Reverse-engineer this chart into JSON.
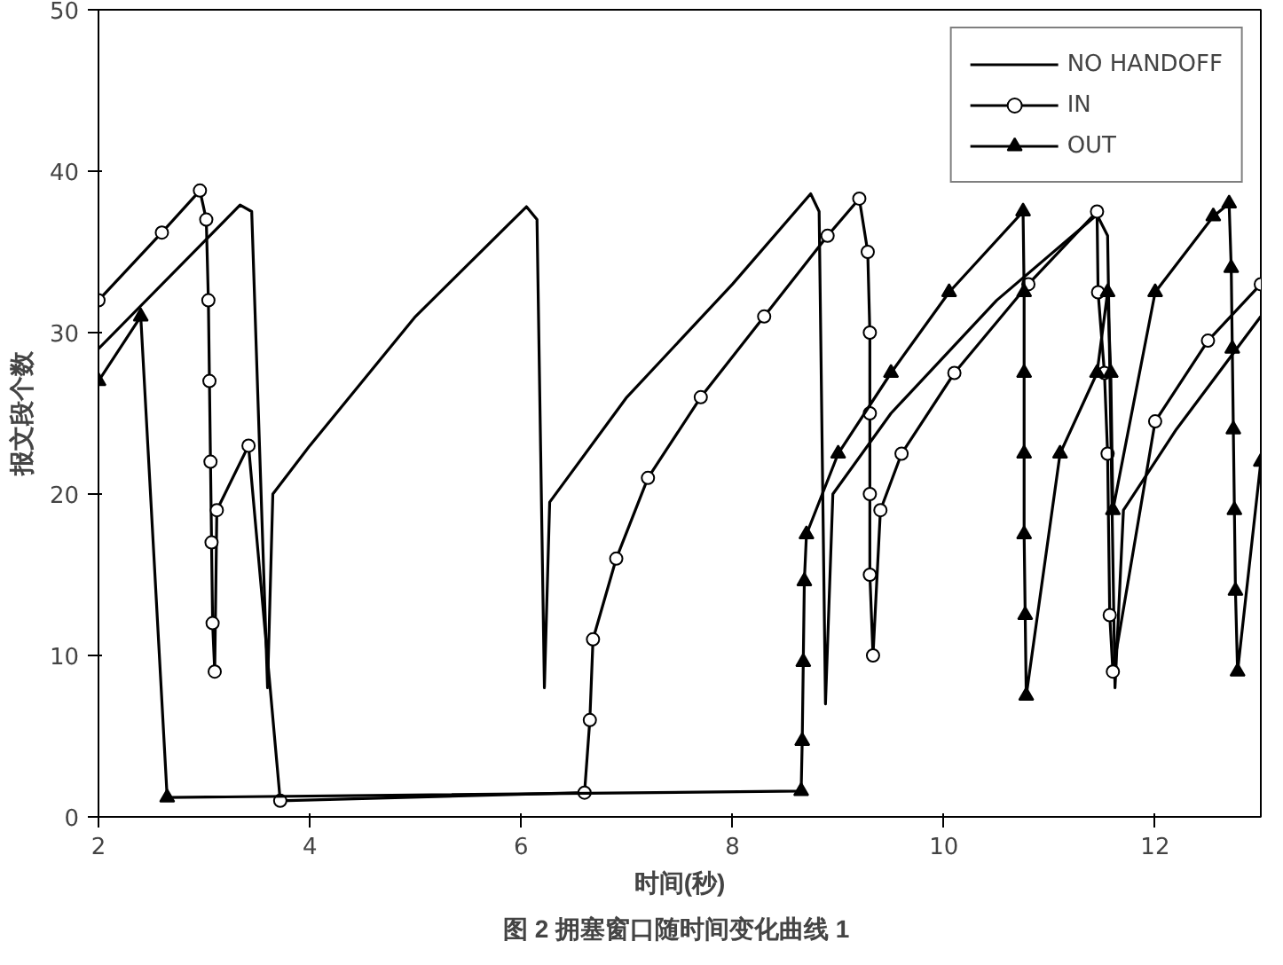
{
  "chart_data": {
    "type": "line",
    "title": "图 2  拥塞窗口随时间变化曲线 1",
    "xlabel": "时间(秒)",
    "ylabel": "报文段个数",
    "xlim": [
      2,
      13
    ],
    "ylim": [
      0,
      50
    ],
    "xticks": [
      2,
      4,
      6,
      8,
      10,
      12
    ],
    "yticks": [
      0,
      10,
      20,
      30,
      40,
      50
    ],
    "grid": false,
    "legend": "top right",
    "line_style": "solid",
    "series": [
      {
        "name": "NO HANDOFF",
        "color": "#000000",
        "marker": "none",
        "x": [
          2,
          3.34,
          3.45,
          3.6,
          3.65,
          4,
          5,
          6.05,
          6.15,
          6.22,
          6.27,
          7,
          8,
          8.74,
          8.82,
          8.88,
          8.95,
          9.5,
          10.5,
          11.45,
          11.55,
          11.62,
          11.7,
          12.2,
          13
        ],
        "values": [
          29,
          37.9,
          37.5,
          8,
          20,
          23,
          31,
          37.8,
          37,
          8,
          19.5,
          26,
          33,
          38.6,
          37.5,
          7,
          20,
          25,
          32,
          37.3,
          36,
          8,
          19,
          24,
          31
        ]
      },
      {
        "name": "IN",
        "color": "#000000",
        "marker": "circle",
        "x": [
          2,
          2.6,
          2.96,
          3.02,
          3.04,
          3.05,
          3.06,
          3.07,
          3.08,
          3.1,
          3.12,
          3.42,
          3.72,
          6.6,
          6.65,
          6.68,
          6.9,
          7.2,
          7.7,
          8.3,
          8.9,
          9.2,
          9.28,
          9.3,
          9.3,
          9.3,
          9.3,
          9.33,
          9.4,
          9.6,
          10.1,
          10.8,
          11.45,
          11.46,
          11.52,
          11.55,
          11.57,
          11.6,
          12.0,
          12.5,
          13
        ],
        "values": [
          32,
          36.2,
          38.8,
          37,
          32,
          27,
          22,
          17,
          12,
          9,
          19,
          23,
          1,
          1.5,
          6,
          11,
          16,
          21,
          26,
          31,
          36,
          38.3,
          35,
          30,
          25,
          20,
          15,
          10,
          19,
          22.5,
          27.5,
          33,
          37.5,
          32.5,
          27.5,
          22.5,
          12.5,
          9,
          24.5,
          29.5,
          33
        ]
      },
      {
        "name": "OUT",
        "color": "#000000",
        "marker": "triangle",
        "x": [
          2,
          2.4,
          2.65,
          8.65,
          8.66,
          8.67,
          8.68,
          8.7,
          9.0,
          9.5,
          10.05,
          10.75,
          10.76,
          10.76,
          10.76,
          10.76,
          10.77,
          10.78,
          11.1,
          11.45,
          11.55,
          11.58,
          11.6,
          12.0,
          12.55,
          12.7,
          12.72,
          12.73,
          12.74,
          12.75,
          12.76,
          12.78,
          13
        ],
        "values": [
          27,
          31,
          1.2,
          1.6,
          4.7,
          9.6,
          14.6,
          17.5,
          22.5,
          27.5,
          32.5,
          37.5,
          32.5,
          27.5,
          22.5,
          17.5,
          12.5,
          7.5,
          22.5,
          27.5,
          32.5,
          27.5,
          19,
          32.5,
          37.2,
          38,
          34,
          29,
          24,
          19,
          14,
          9,
          22
        ]
      }
    ]
  }
}
